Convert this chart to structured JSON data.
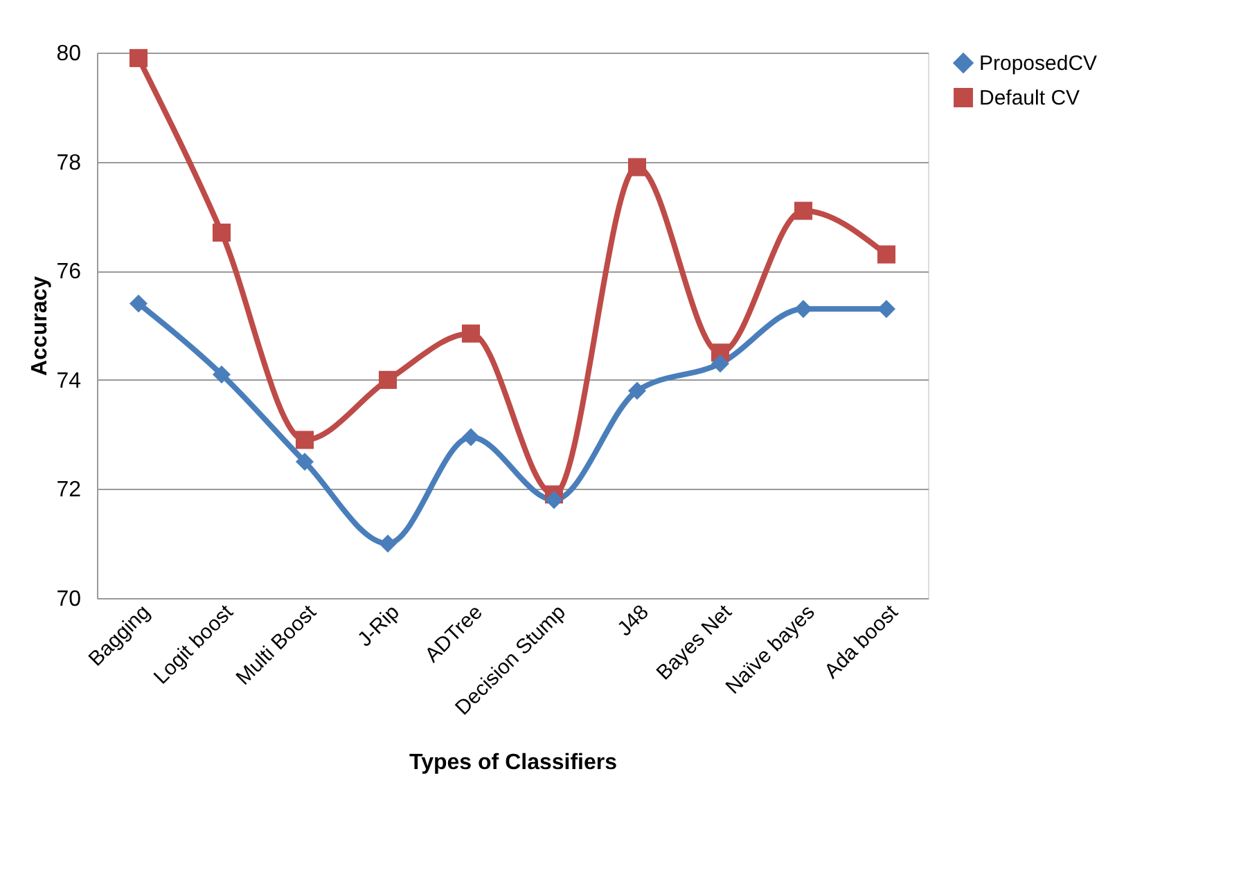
{
  "chart_data": {
    "type": "line",
    "xlabel": "Types of Classifiers",
    "ylabel": "Accuracy",
    "categories": [
      "Bagging",
      "Logit boost",
      "Multi Boost",
      "J-Rip",
      "ADTree",
      "Decision  Stump",
      "J48",
      "Bayes Net",
      "Naïve bayes",
      "Ada boost"
    ],
    "series": [
      {
        "name": "ProposedCV",
        "color": "#4a7ebb",
        "marker": "diamond",
        "values": [
          75.4,
          74.1,
          72.5,
          71.0,
          72.95,
          71.8,
          73.8,
          74.3,
          75.3,
          75.3
        ]
      },
      {
        "name": "Default CV",
        "color": "#be4b48",
        "marker": "square",
        "values": [
          79.9,
          76.7,
          72.9,
          74.0,
          74.85,
          71.9,
          77.9,
          74.5,
          77.1,
          76.3
        ]
      }
    ],
    "ylim": [
      70,
      80
    ],
    "yticks": [
      70,
      72,
      74,
      76,
      78,
      80
    ],
    "grid": "y",
    "legend": "right"
  }
}
